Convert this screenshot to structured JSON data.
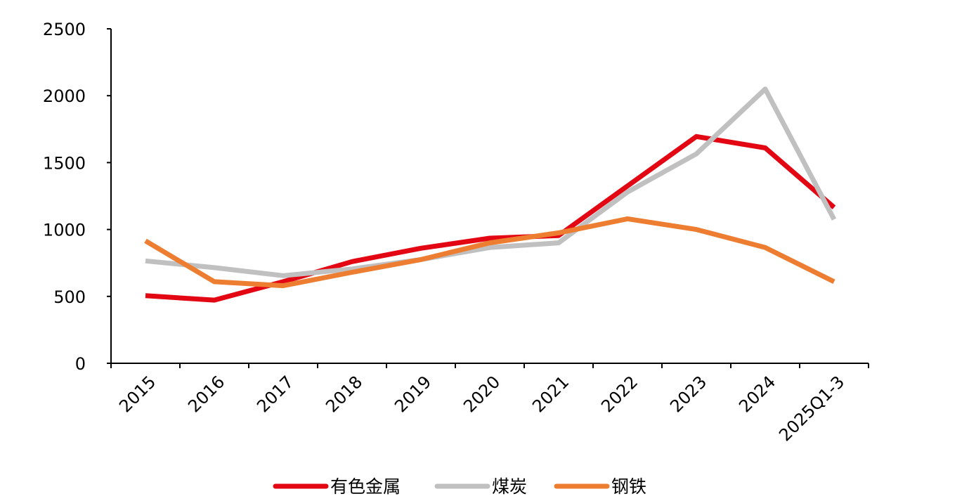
{
  "chart_data": {
    "type": "line",
    "categories": [
      "2015",
      "2016",
      "2017",
      "2018",
      "2019",
      "2020",
      "2021",
      "2022",
      "2023",
      "2024",
      "2025Q1-3"
    ],
    "ylim": [
      0,
      2500
    ],
    "yticks": [
      0,
      500,
      1000,
      1500,
      2000,
      2500
    ],
    "grid": false,
    "legend_position": "bottom",
    "series": [
      {
        "name": "有色金属",
        "color": "#e30613",
        "values": [
          505,
          472,
          610,
          760,
          860,
          935,
          955,
          1325,
          1695,
          1610,
          1165
        ]
      },
      {
        "name": "煤炭",
        "color": "#c0c0c0",
        "values": [
          765,
          715,
          655,
          705,
          775,
          865,
          900,
          1280,
          1565,
          2050,
          1075
        ]
      },
      {
        "name": "钢铁",
        "color": "#ed7d31",
        "values": [
          915,
          610,
          580,
          680,
          775,
          900,
          975,
          1080,
          1000,
          865,
          610
        ]
      }
    ]
  }
}
